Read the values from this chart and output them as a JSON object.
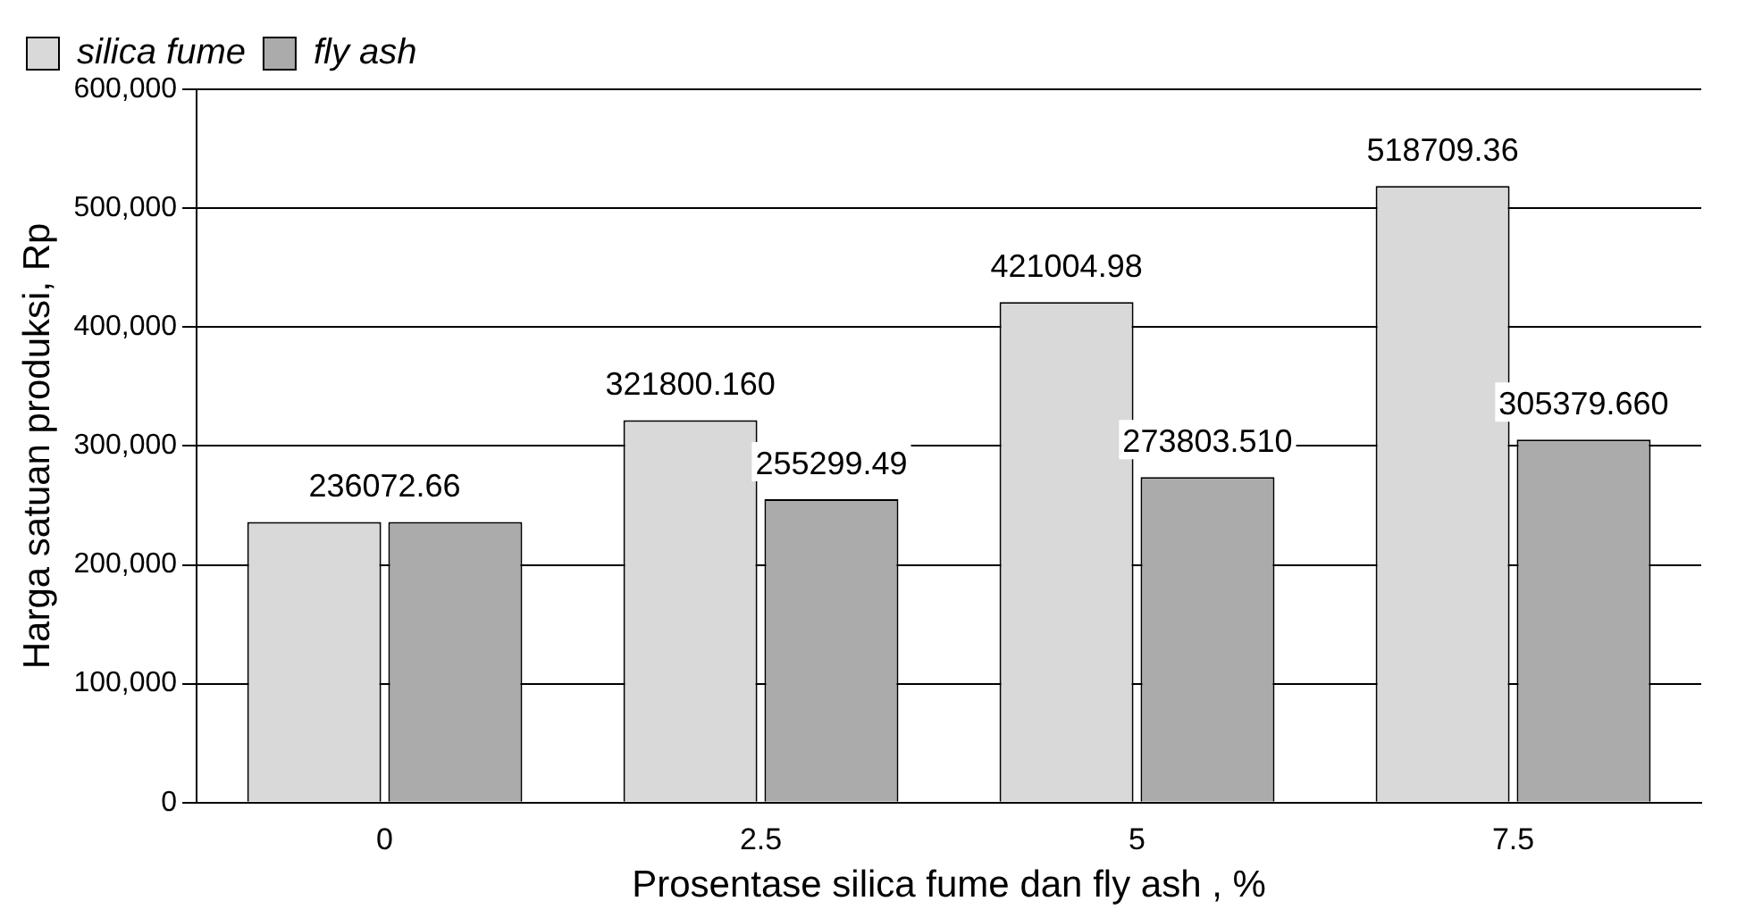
{
  "chart_data": {
    "type": "bar",
    "xlabel": "Prosentase silica fume dan fly ash , %",
    "ylabel": "Harga satuan produksi, Rp",
    "categories": [
      "0",
      "2.5",
      "5",
      "7.5"
    ],
    "series": [
      {
        "name": "silica fume",
        "color": "#d9d9d9",
        "values": [
          236072.66,
          321800.16,
          421004.98,
          518709.36
        ],
        "value_labels": [
          "236072.66",
          "321800.160",
          "421004.98",
          "518709.36"
        ]
      },
      {
        "name": "fly ash",
        "color": "#ababab",
        "values": [
          236072.66,
          255299.49,
          273803.51,
          305379.66
        ],
        "value_labels": [
          null,
          "255299.49",
          "273803.510",
          "305379.660"
        ]
      }
    ],
    "ylim": [
      0,
      600000
    ],
    "yticks": [
      {
        "value": 0,
        "label": "0"
      },
      {
        "value": 100000,
        "label": "100,000"
      },
      {
        "value": 200000,
        "label": "200,000"
      },
      {
        "value": 300000,
        "label": "300,000"
      },
      {
        "value": 400000,
        "label": "400,000"
      },
      {
        "value": 500000,
        "label": "500,000"
      },
      {
        "value": 600000,
        "label": "600,000"
      }
    ],
    "grid": "y",
    "legend": "top left"
  }
}
